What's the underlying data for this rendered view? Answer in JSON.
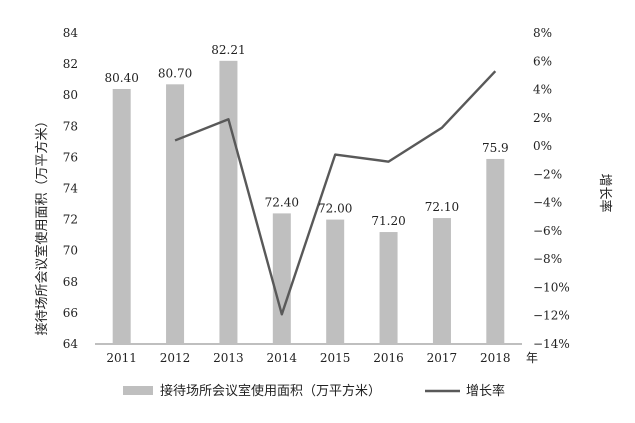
{
  "chart_data": {
    "type": "bar+line",
    "categories": [
      "2011",
      "2012",
      "2013",
      "2014",
      "2015",
      "2016",
      "2017",
      "2018"
    ],
    "x_unit": "年",
    "series": [
      {
        "name": "接待场所会议室使用面积（万平方米）",
        "type": "bar",
        "axis": "left",
        "color": "#bfbfbf",
        "values": [
          80.4,
          80.7,
          82.21,
          72.4,
          72.0,
          71.2,
          72.1,
          75.9
        ],
        "labels": [
          "80.40",
          "80.70",
          "82.21",
          "72.40",
          "72.00",
          "71.20",
          "72.10",
          "75.9"
        ]
      },
      {
        "name": "增长率",
        "type": "line",
        "axis": "right",
        "color": "#595959",
        "values": [
          null,
          0.4,
          1.9,
          -11.9,
          -0.6,
          -1.1,
          1.3,
          5.3
        ]
      }
    ],
    "y_left": {
      "label": "接待场所会议室使用面积（万平方米）",
      "min": 64,
      "max": 84,
      "ticks": [
        "64",
        "66",
        "68",
        "70",
        "72",
        "74",
        "76",
        "78",
        "80",
        "82",
        "84"
      ]
    },
    "y_right": {
      "label": "增长率",
      "unit": "%",
      "min": -14,
      "max": 8,
      "ticks": [
        "−14%",
        "−12%",
        "−10%",
        "−8%",
        "−6%",
        "−4%",
        "−2%",
        "0%",
        "2%",
        "4%",
        "6%",
        "8%"
      ]
    },
    "grid": false,
    "legend": "bottom"
  }
}
